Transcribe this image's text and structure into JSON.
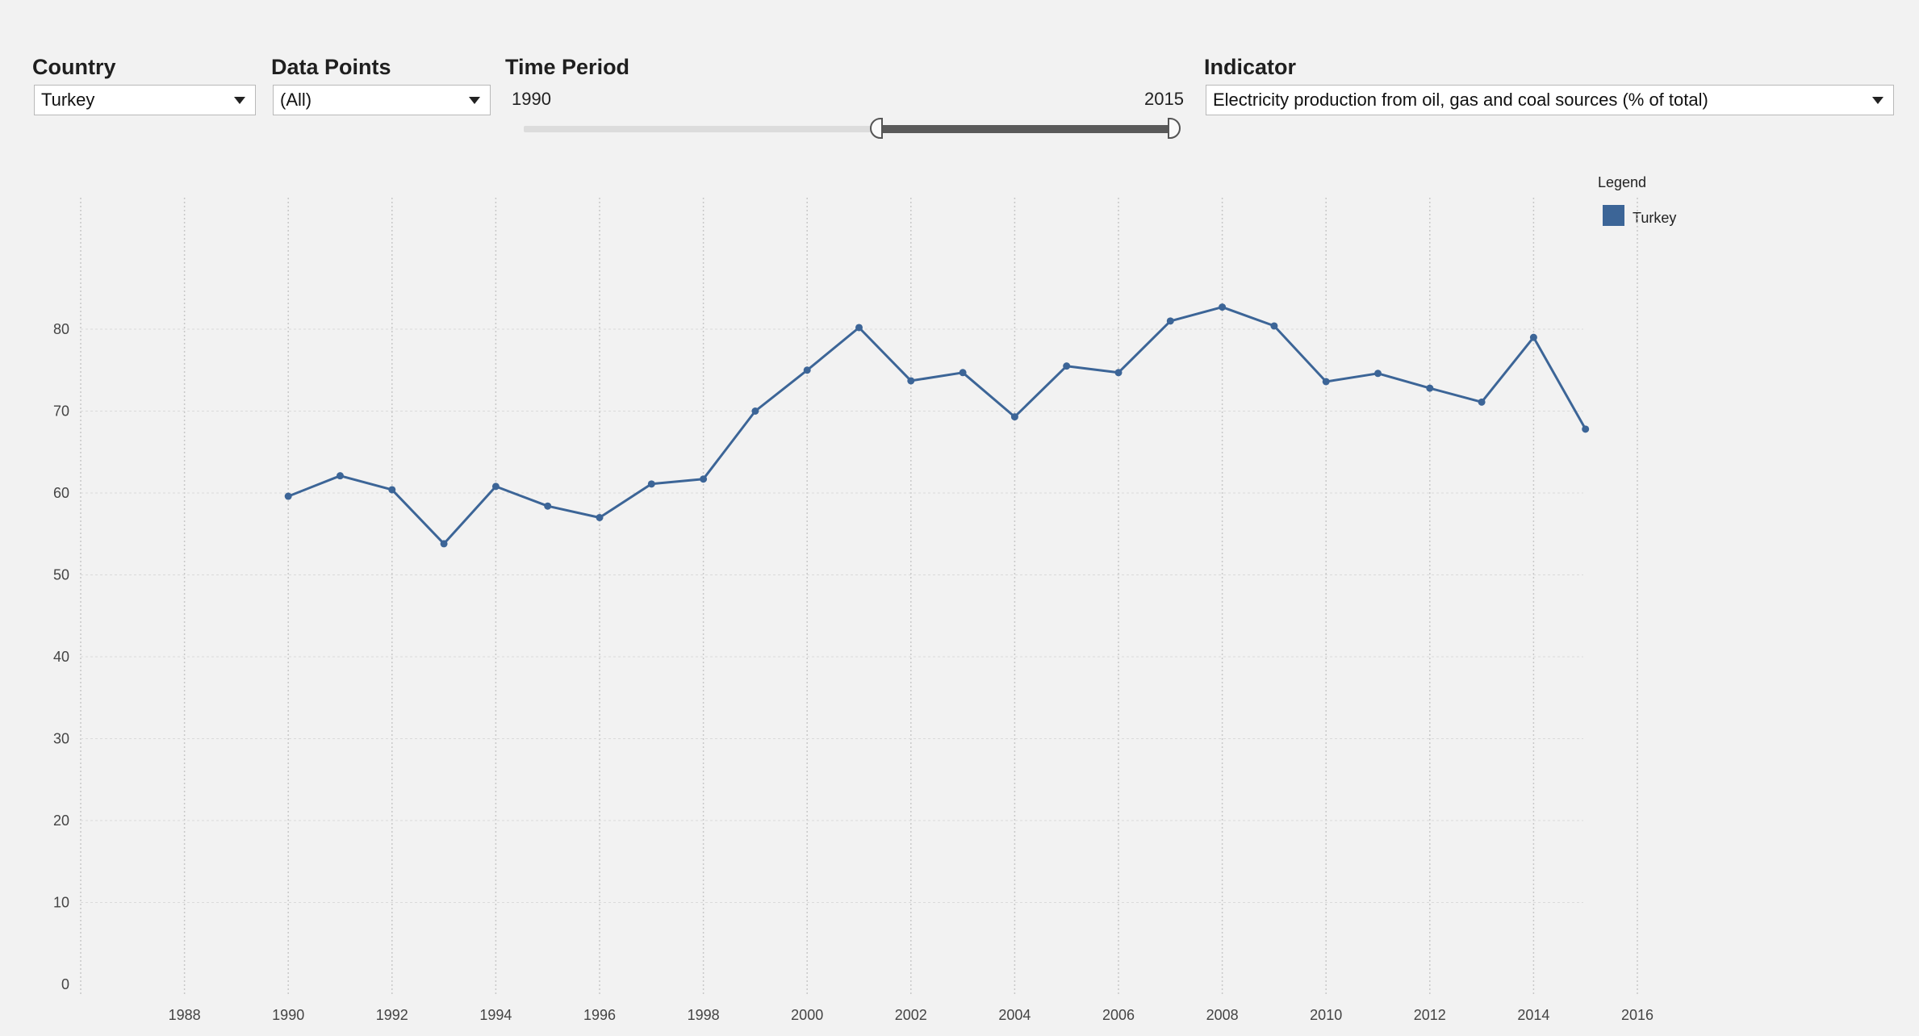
{
  "filters": {
    "country": {
      "label": "Country",
      "value": "Turkey"
    },
    "data_points": {
      "label": "Data Points",
      "value": "(All)"
    },
    "time_period": {
      "label": "Time Period",
      "start": "1990",
      "end": "2015",
      "range_start": 1990,
      "range_end": 2015
    },
    "indicator": {
      "label": "Indicator",
      "value": "Electricity production from oil, gas and coal sources (% of total)"
    }
  },
  "legend": {
    "title": "Legend",
    "items": [
      {
        "label": "Turkey",
        "color": "#3c6597"
      }
    ]
  },
  "chart_data": {
    "type": "line",
    "title": "",
    "xlabel": "",
    "ylabel": "",
    "xlim": [
      1986,
      2017
    ],
    "ylim": [
      0,
      87
    ],
    "x_ticks": [
      1988,
      1990,
      1992,
      1994,
      1996,
      1998,
      2000,
      2002,
      2004,
      2006,
      2008,
      2010,
      2012,
      2014,
      2016
    ],
    "y_ticks": [
      0,
      10,
      20,
      30,
      40,
      50,
      60,
      70,
      80
    ],
    "grid": true,
    "legend_position": "top-right",
    "series": [
      {
        "name": "Turkey",
        "color": "#3c6597",
        "x": [
          1990,
          1991,
          1992,
          1993,
          1994,
          1995,
          1996,
          1997,
          1998,
          1999,
          2000,
          2001,
          2002,
          2003,
          2004,
          2005,
          2006,
          2007,
          2008,
          2009,
          2010,
          2011,
          2012,
          2013,
          2014,
          2015
        ],
        "y": [
          59.6,
          62.1,
          60.4,
          53.8,
          60.8,
          58.4,
          57.0,
          61.1,
          61.7,
          70.0,
          75.0,
          80.2,
          73.7,
          74.7,
          69.3,
          75.5,
          74.7,
          81.0,
          82.7,
          80.4,
          73.6,
          74.6,
          72.8,
          71.1,
          79.0,
          67.8
        ]
      }
    ]
  }
}
